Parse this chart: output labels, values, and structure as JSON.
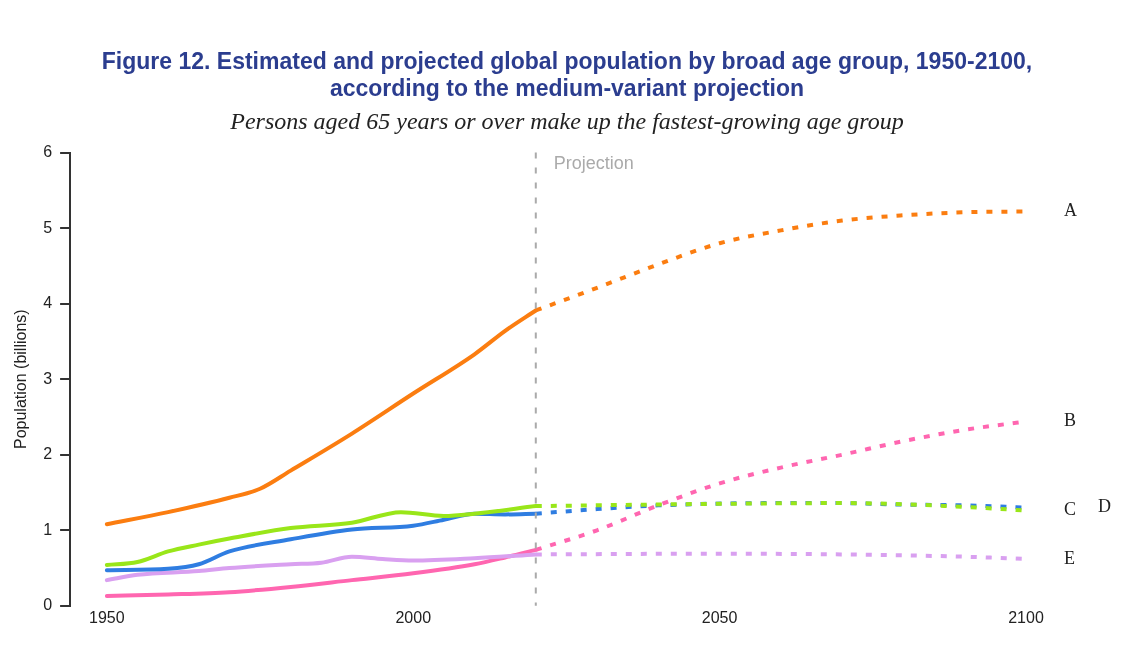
{
  "chart_data": {
    "type": "line",
    "title": "Figure 12. Estimated and projected global population by broad age group, 1950-2100, according to the medium-variant projection",
    "subtitle": "Persons aged 65 years or over make up the fastest-growing age group",
    "ylabel": "Population (billions)",
    "xlim": [
      1944,
      2100
    ],
    "xticks": [
      1950,
      2000,
      2050,
      2100
    ],
    "ylim": [
      0,
      6
    ],
    "yticks": [
      0,
      1,
      2,
      3,
      4,
      5,
      6
    ],
    "marker": "none",
    "ref_lines": [
      {
        "axis": "x",
        "value": 2020,
        "label": "Projection",
        "color": "#aaaaaa",
        "line_style": "dashed"
      }
    ],
    "series": [
      {
        "color": "#fb7d10",
        "line_style": "solid",
        "x": [
          1950,
          1960,
          1970,
          1975,
          1980,
          1990,
          2000,
          2010,
          2015,
          2020
        ],
        "values": [
          1.08,
          1.24,
          1.43,
          1.55,
          1.79,
          2.28,
          2.81,
          3.33,
          3.64,
          3.91
        ]
      },
      {
        "color": "#99e619",
        "line_style": "solid",
        "x": [
          1950,
          1955,
          1960,
          1965,
          1970,
          1980,
          1990,
          1998,
          2005,
          2010,
          2020
        ],
        "values": [
          0.54,
          0.58,
          0.72,
          0.81,
          0.89,
          1.03,
          1.1,
          1.24,
          1.19,
          1.22,
          1.32
        ]
      },
      {
        "color": "#2f7de1",
        "line_style": "solid",
        "x": [
          1950,
          1960,
          1965,
          1970,
          1980,
          1990,
          2000,
          2005,
          2010,
          2015,
          2020
        ],
        "values": [
          0.47,
          0.49,
          0.55,
          0.72,
          0.88,
          1.01,
          1.06,
          1.14,
          1.22,
          1.21,
          1.22
        ]
      },
      {
        "color": "#d9a0f0",
        "line_style": "solid",
        "x": [
          1950,
          1955,
          1965,
          1970,
          1980,
          1985,
          1990,
          1995,
          2000,
          2010,
          2020
        ],
        "values": [
          0.34,
          0.41,
          0.46,
          0.5,
          0.55,
          0.57,
          0.65,
          0.62,
          0.6,
          0.63,
          0.68
        ]
      },
      {
        "color": "#ff66b0",
        "line_style": "solid",
        "x": [
          1950,
          1960,
          1970,
          1980,
          1990,
          2000,
          2010,
          2015,
          2020
        ],
        "values": [
          0.13,
          0.15,
          0.18,
          0.25,
          0.34,
          0.43,
          0.55,
          0.64,
          0.74
        ]
      },
      {
        "name": "A",
        "color": "#fb7d10",
        "line_style": "dashed",
        "x": [
          2020,
          2030,
          2040,
          2050,
          2060,
          2070,
          2080,
          2090,
          2100
        ],
        "values": [
          3.91,
          4.21,
          4.52,
          4.8,
          4.97,
          5.1,
          5.17,
          5.21,
          5.22
        ]
      },
      {
        "name": "B",
        "color": "#ff66b0",
        "line_style": "dashed",
        "x": [
          2020,
          2030,
          2040,
          2050,
          2060,
          2070,
          2080,
          2090,
          2100
        ],
        "values": [
          0.74,
          1.0,
          1.33,
          1.62,
          1.83,
          2.0,
          2.18,
          2.33,
          2.44
        ]
      },
      {
        "name": "C",
        "color": "#99e619",
        "line_style": "dashed",
        "x": [
          2020,
          2050,
          2070,
          2090,
          2100
        ],
        "values": [
          1.32,
          1.35,
          1.36,
          1.31,
          1.26
        ]
      },
      {
        "name": "D",
        "color": "#2f7de1",
        "line_style": "dashed",
        "x": [
          2020,
          2030,
          2040,
          2060,
          2070,
          2080,
          2090,
          2100
        ],
        "values": [
          1.22,
          1.28,
          1.33,
          1.36,
          1.36,
          1.34,
          1.33,
          1.3
        ]
      },
      {
        "name": "E",
        "color": "#d9a0f0",
        "line_style": "dashed",
        "x": [
          2020,
          2050,
          2070,
          2090,
          2100
        ],
        "values": [
          0.68,
          0.69,
          0.68,
          0.65,
          0.62
        ]
      }
    ]
  }
}
